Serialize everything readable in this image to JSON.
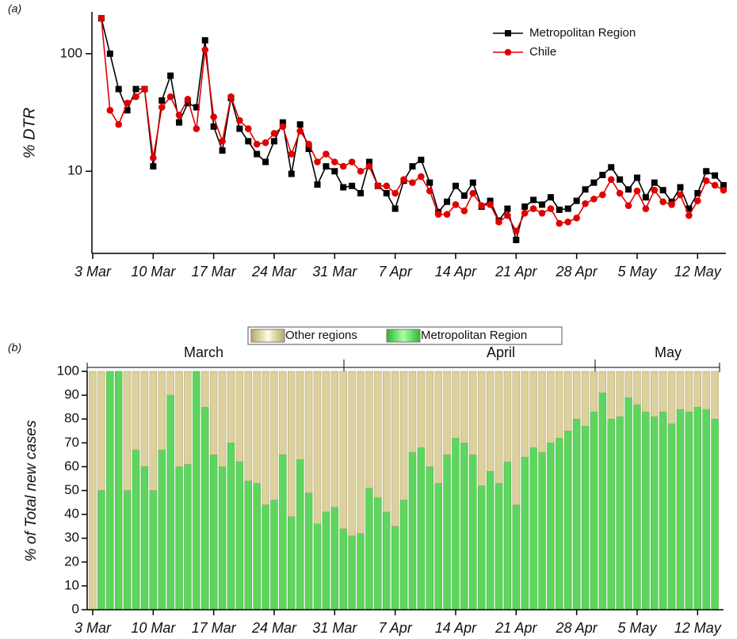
{
  "chart_data": [
    {
      "type": "line",
      "label": "(a)",
      "ylabel": "% DTR",
      "log": true,
      "x": [
        1,
        2,
        3,
        4,
        5,
        6,
        7,
        8,
        9,
        10,
        11,
        12,
        13,
        14,
        15,
        16,
        17,
        18,
        19,
        20,
        21,
        22,
        23,
        24,
        25,
        26,
        27,
        28,
        29,
        30,
        31,
        32,
        33,
        34,
        35,
        36,
        37,
        38,
        39,
        40,
        41,
        42,
        43,
        44,
        45,
        46,
        47,
        48,
        49,
        50,
        51,
        52,
        53,
        54,
        55,
        56,
        57,
        58,
        59,
        60,
        61,
        62,
        63,
        64,
        65,
        66,
        67,
        68,
        69,
        70,
        71,
        72,
        73
      ],
      "series": [
        {
          "name": "Metropolitan Region",
          "color": "#000000",
          "marker": "square",
          "values": [
            200,
            100,
            50,
            33,
            50,
            50,
            11,
            40,
            65,
            26,
            38,
            35,
            130,
            24,
            15,
            42,
            23,
            18,
            14,
            12,
            18,
            26,
            9.5,
            25,
            15.5,
            7.7,
            11,
            10,
            7.3,
            7.5,
            6.5,
            12,
            7.5,
            6.5,
            4.8,
            8.3,
            11,
            12.5,
            8,
            4.5,
            5.5,
            7.5,
            6.2,
            8,
            5,
            5.6,
            3.8,
            4.8,
            2.6,
            5,
            5.7,
            5.2,
            6,
            4.7,
            4.8,
            5.6,
            7,
            8,
            9.3,
            10.8,
            8.5,
            7,
            8.8,
            6,
            8,
            6.9,
            5.5,
            7.3,
            4.8,
            6.5,
            10,
            9.2,
            7.6
          ]
        },
        {
          "name": "Chile",
          "color": "#e00000",
          "marker": "circle",
          "values": [
            200,
            33,
            25,
            38,
            43,
            50,
            13,
            35,
            43,
            30,
            41,
            23,
            108,
            29,
            18,
            43,
            27,
            23,
            17,
            17.5,
            21,
            24,
            14,
            22,
            17,
            12,
            14,
            12,
            11,
            12,
            10,
            11,
            7.5,
            7.5,
            6.5,
            8.5,
            8,
            9,
            6.8,
            4.3,
            4.3,
            5.2,
            4.6,
            6.5,
            5.1,
            5.2,
            3.7,
            4.2,
            3.1,
            4.4,
            4.8,
            4.4,
            4.8,
            3.6,
            3.7,
            4,
            5.3,
            5.8,
            6.3,
            8.5,
            6.5,
            5.1,
            6.8,
            4.8,
            6.9,
            5.5,
            5.2,
            6.3,
            4.2,
            5.6,
            8.3,
            7.6,
            6.9
          ]
        }
      ],
      "xlim": [
        0,
        73
      ],
      "xticks": [
        {
          "value": 0,
          "label": "3 Mar"
        },
        {
          "value": 7,
          "label": "10 Mar"
        },
        {
          "value": 14,
          "label": "17 Mar"
        },
        {
          "value": 21,
          "label": "24 Mar"
        },
        {
          "value": 28,
          "label": "31 Mar"
        },
        {
          "value": 35,
          "label": "7 Apr"
        },
        {
          "value": 42,
          "label": "14 Apr"
        },
        {
          "value": 49,
          "label": "21 Apr"
        },
        {
          "value": 56,
          "label": "28 Apr"
        },
        {
          "value": 63,
          "label": "5 May"
        },
        {
          "value": 70,
          "label": "12 May"
        }
      ],
      "ylim": [
        2,
        220
      ],
      "yticks": [
        10,
        100
      ],
      "legend": "top-right"
    },
    {
      "type": "stacked-bar",
      "label": "(b)",
      "ylabel": "% of Total new cases",
      "months": [
        "March",
        "April",
        "May"
      ],
      "x": [
        0,
        1,
        2,
        3,
        4,
        5,
        6,
        7,
        8,
        9,
        10,
        11,
        12,
        13,
        14,
        15,
        16,
        17,
        18,
        19,
        20,
        21,
        22,
        23,
        24,
        25,
        26,
        27,
        28,
        29,
        30,
        31,
        32,
        33,
        34,
        35,
        36,
        37,
        38,
        39,
        40,
        41,
        42,
        43,
        44,
        45,
        46,
        47,
        48,
        49,
        50,
        51,
        52,
        53,
        54,
        55,
        56,
        57,
        58,
        59,
        60,
        61,
        62,
        63,
        64,
        65,
        66,
        67,
        68,
        69,
        70,
        71,
        72
      ],
      "series": [
        {
          "name": "Metropolitan Region",
          "color": "#5ed65e",
          "values": [
            0,
            50,
            100,
            100,
            50,
            67,
            60,
            50,
            67,
            90,
            60,
            61,
            100,
            85,
            65,
            60,
            70,
            62,
            54,
            53,
            44,
            46,
            65,
            39,
            63,
            49,
            36,
            41,
            43,
            34,
            31,
            32,
            51,
            47,
            41,
            35,
            46,
            66,
            68,
            60,
            53,
            65,
            72,
            70,
            65,
            52,
            58,
            53,
            62,
            44,
            64,
            68,
            66,
            70,
            72,
            75,
            80,
            77,
            83,
            91,
            80,
            81,
            89,
            86,
            83,
            81,
            83,
            78,
            84,
            83,
            85,
            84,
            80
          ]
        },
        {
          "name": "Other regions",
          "color": "#dcd09c",
          "values": [
            100,
            50,
            0,
            0,
            50,
            33,
            40,
            50,
            33,
            10,
            40,
            39,
            0,
            15,
            35,
            40,
            30,
            38,
            46,
            47,
            56,
            54,
            35,
            61,
            37,
            51,
            64,
            59,
            57,
            66,
            69,
            68,
            49,
            53,
            59,
            65,
            54,
            34,
            32,
            40,
            47,
            35,
            28,
            30,
            35,
            48,
            42,
            47,
            38,
            56,
            36,
            32,
            34,
            30,
            28,
            25,
            20,
            23,
            17,
            9,
            20,
            19,
            11,
            14,
            17,
            19,
            17,
            22,
            16,
            17,
            15,
            16,
            20
          ]
        }
      ],
      "xlim": [
        0,
        73
      ],
      "xticks": [
        {
          "value": 0,
          "label": "3 Mar"
        },
        {
          "value": 7,
          "label": "10 Mar"
        },
        {
          "value": 14,
          "label": "17 Mar"
        },
        {
          "value": 21,
          "label": "24 Mar"
        },
        {
          "value": 28,
          "label": "31 Mar"
        },
        {
          "value": 35,
          "label": "7 Apr"
        },
        {
          "value": 42,
          "label": "14 Apr"
        },
        {
          "value": 49,
          "label": "21 Apr"
        },
        {
          "value": 56,
          "label": "28 Apr"
        },
        {
          "value": 63,
          "label": "5 May"
        },
        {
          "value": 70,
          "label": "12 May"
        }
      ],
      "ylim": [
        0,
        100
      ],
      "yticks": [
        0,
        10,
        20,
        30,
        40,
        50,
        60,
        70,
        80,
        90,
        100
      ],
      "legend": "top"
    }
  ]
}
